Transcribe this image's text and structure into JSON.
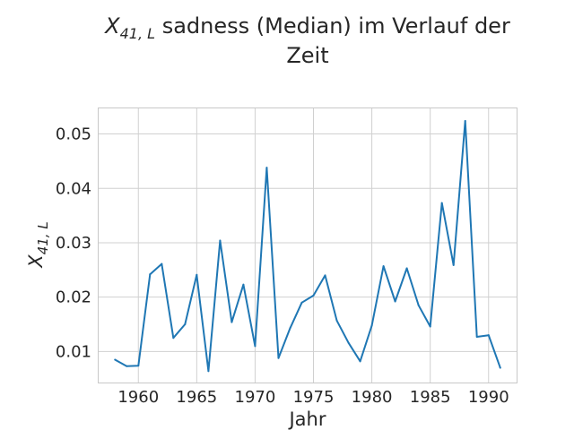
{
  "chart_data": {
    "type": "line",
    "title_line1_pre": "X",
    "title_line1_sub": "41, L",
    "title_line1_post": " sadness (Median) im Verlauf der",
    "title_line2": "Zeit",
    "xlabel": "Jahr",
    "ylabel_pre": "X",
    "ylabel_sub": "41, L",
    "xlim": [
      1956.6,
      1992.4
    ],
    "ylim": [
      0.0043,
      0.0547
    ],
    "xticks": [
      1960,
      1965,
      1970,
      1975,
      1980,
      1985,
      1990
    ],
    "yticks": [
      0.01,
      0.02,
      0.03,
      0.04,
      0.05
    ],
    "ytick_labels": [
      "0.01",
      "0.02",
      "0.03",
      "0.04",
      "0.05"
    ],
    "grid": true,
    "line_color": "#1f77b4",
    "series": [
      {
        "x": [
          1958,
          1959,
          1960,
          1961,
          1962,
          1963,
          1964,
          1965,
          1966,
          1967,
          1968,
          1969,
          1970,
          1971,
          1972,
          1973,
          1974,
          1975,
          1976,
          1977,
          1978,
          1979,
          1980,
          1981,
          1982,
          1983,
          1984,
          1985,
          1986,
          1987,
          1988,
          1989,
          1990,
          1991
        ],
        "y": [
          0.0085,
          0.0073,
          0.0074,
          0.0242,
          0.0261,
          0.0125,
          0.015,
          0.0241,
          0.0064,
          0.0304,
          0.0154,
          0.0223,
          0.011,
          0.0438,
          0.0088,
          0.0143,
          0.019,
          0.0203,
          0.024,
          0.0157,
          0.0116,
          0.0082,
          0.0148,
          0.0257,
          0.0192,
          0.0253,
          0.0185,
          0.0146,
          0.0373,
          0.0259,
          0.0524,
          0.0127,
          0.013,
          0.007
        ]
      }
    ]
  }
}
